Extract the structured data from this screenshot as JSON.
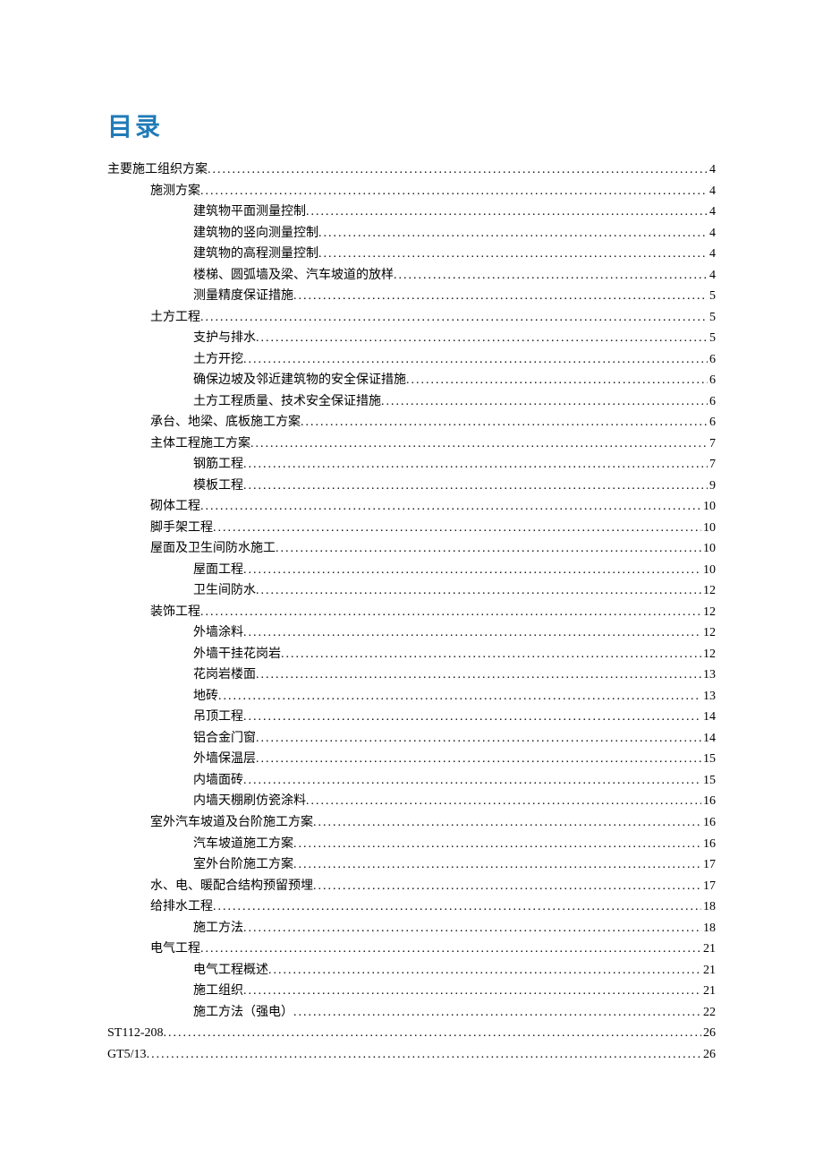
{
  "title": "目录",
  "entries": [
    {
      "text": "主要施工组织方案",
      "page": "4",
      "level": 0
    },
    {
      "text": "施测方案",
      "page": "4",
      "level": 1
    },
    {
      "text": "建筑物平面测量控制",
      "page": "4",
      "level": 2
    },
    {
      "text": "建筑物的竖向测量控制",
      "page": "4",
      "level": 2
    },
    {
      "text": "建筑物的高程测量控制",
      "page": "4",
      "level": 2
    },
    {
      "text": "楼梯、圆弧墙及梁、汽车坡道的放样",
      "page": "4",
      "level": 2
    },
    {
      "text": "测量精度保证措施",
      "page": "5",
      "level": 2
    },
    {
      "text": "土方工程",
      "page": "5",
      "level": 1
    },
    {
      "text": "支护与排水",
      "page": "5",
      "level": 2
    },
    {
      "text": "土方开挖",
      "page": "6",
      "level": 2
    },
    {
      "text": "确保边坡及邻近建筑物的安全保证措施",
      "page": "6",
      "level": 2
    },
    {
      "text": "土方工程质量、技术安全保证措施",
      "page": "6",
      "level": 2
    },
    {
      "text": "承台、地梁、底板施工方案",
      "page": "6",
      "level": 1
    },
    {
      "text": "主体工程施工方案",
      "page": "7",
      "level": 1
    },
    {
      "text": "钢筋工程",
      "page": "7",
      "level": 2
    },
    {
      "text": "模板工程",
      "page": "9",
      "level": 2
    },
    {
      "text": "砌体工程",
      "page": "10",
      "level": 1
    },
    {
      "text": "脚手架工程",
      "page": "10",
      "level": 1
    },
    {
      "text": "屋面及卫生间防水施工",
      "page": "10",
      "level": 1
    },
    {
      "text": "屋面工程",
      "page": "10",
      "level": 2
    },
    {
      "text": "卫生间防水",
      "page": "12",
      "level": 2
    },
    {
      "text": "装饰工程",
      "page": "12",
      "level": 1
    },
    {
      "text": "外墙涂料",
      "page": "12",
      "level": 2
    },
    {
      "text": "外墙干挂花岗岩",
      "page": "12",
      "level": 2
    },
    {
      "text": "花岗岩楼面",
      "page": "13",
      "level": 2
    },
    {
      "text": "地砖",
      "page": "13",
      "level": 2
    },
    {
      "text": "吊顶工程",
      "page": "14",
      "level": 2
    },
    {
      "text": "铝合金门窗",
      "page": "14",
      "level": 2
    },
    {
      "text": "外墙保温层",
      "page": "15",
      "level": 2
    },
    {
      "text": "内墙面砖",
      "page": "15",
      "level": 2
    },
    {
      "text": "内墙天棚刷仿瓷涂料",
      "page": "16",
      "level": 2
    },
    {
      "text": "室外汽车坡道及台阶施工方案",
      "page": "16",
      "level": 1
    },
    {
      "text": "汽车坡道施工方案",
      "page": "16",
      "level": 2
    },
    {
      "text": "室外台阶施工方案",
      "page": "17",
      "level": 2
    },
    {
      "text": "水、电、暖配合结构预留预埋",
      "page": "17",
      "level": 1
    },
    {
      "text": "给排水工程",
      "page": "18",
      "level": 1
    },
    {
      "text": "施工方法",
      "page": "18",
      "level": 2
    },
    {
      "text": "电气工程",
      "page": "21",
      "level": 1
    },
    {
      "text": "电气工程概述",
      "page": "21",
      "level": 2
    },
    {
      "text": "施工组织",
      "page": "21",
      "level": 2
    },
    {
      "text": "施工方法（强电）",
      "page": "22",
      "level": 2
    },
    {
      "text": "ST112-208",
      "page": "26",
      "level": 0
    },
    {
      "text": "GT5/13",
      "page": "26",
      "level": 0
    }
  ]
}
